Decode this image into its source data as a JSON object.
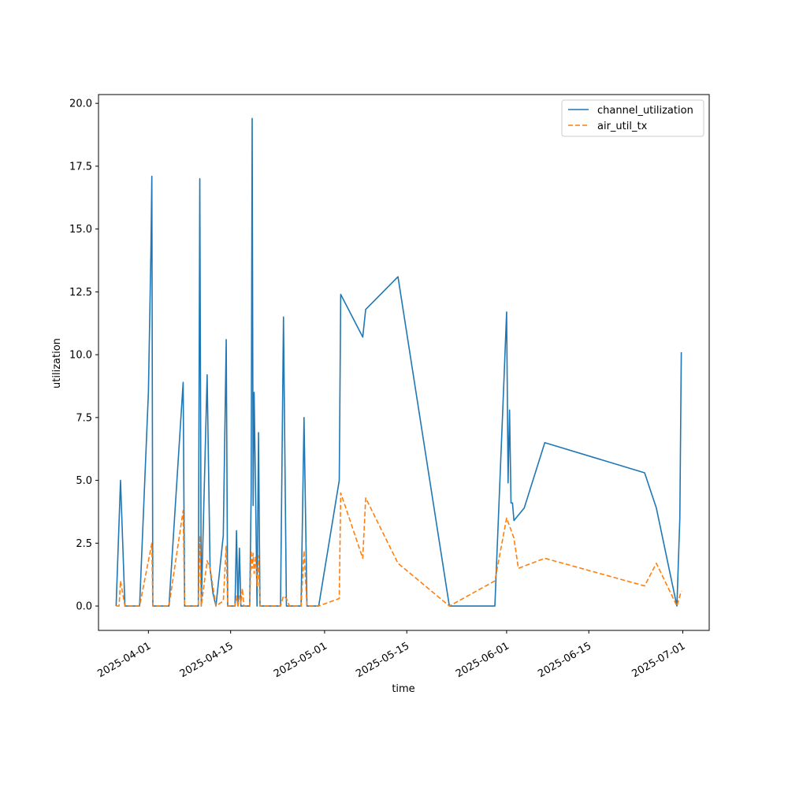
{
  "chart_data": {
    "type": "line",
    "title": "",
    "xlabel": "time",
    "ylabel": "utilization",
    "xlim": [
      "2025-03-23T12:00",
      "2025-07-05T12:00"
    ],
    "ylim": [
      -0.97,
      20.35
    ],
    "x_ticks": [
      "2025-04-01",
      "2025-04-15",
      "2025-05-01",
      "2025-05-15",
      "2025-06-01",
      "2025-06-15",
      "2025-07-01"
    ],
    "y_ticks": [
      "0.0",
      "2.5",
      "5.0",
      "7.5",
      "10.0",
      "12.5",
      "15.0",
      "17.5",
      "20.0"
    ],
    "grid": false,
    "legend": "top-right",
    "series": [
      {
        "name": "channel_utilization",
        "color": "#1f77b4",
        "dash": "solid",
        "points": [
          [
            "2025-03-26T12:00",
            0.0
          ],
          [
            "2025-03-27T06:00",
            5.0
          ],
          [
            "2025-03-28T00:00",
            0.0
          ],
          [
            "2025-03-30T12:00",
            0.0
          ],
          [
            "2025-04-01T00:00",
            8.5
          ],
          [
            "2025-04-01T10:00",
            14.0
          ],
          [
            "2025-04-01T14:00",
            17.1
          ],
          [
            "2025-04-01T18:00",
            0.0
          ],
          [
            "2025-04-04T12:00",
            0.0
          ],
          [
            "2025-04-06T22:00",
            8.9
          ],
          [
            "2025-04-07T04:00",
            0.0
          ],
          [
            "2025-04-09T12:00",
            0.0
          ],
          [
            "2025-04-09T18:00",
            17.0
          ],
          [
            "2025-04-10T00:00",
            0.0
          ],
          [
            "2025-04-11T00:00",
            9.2
          ],
          [
            "2025-04-11T12:00",
            1.5
          ],
          [
            "2025-04-12T00:00",
            0.5
          ],
          [
            "2025-04-12T12:00",
            0.0
          ],
          [
            "2025-04-13T18:00",
            2.8
          ],
          [
            "2025-04-14T06:00",
            10.6
          ],
          [
            "2025-04-14T12:00",
            0.0
          ],
          [
            "2025-04-15T18:00",
            0.0
          ],
          [
            "2025-04-16T00:00",
            3.0
          ],
          [
            "2025-04-16T06:00",
            0.0
          ],
          [
            "2025-04-16T12:00",
            2.3
          ],
          [
            "2025-04-16T18:00",
            0.0
          ],
          [
            "2025-04-18T06:00",
            0.0
          ],
          [
            "2025-04-18T12:00",
            4.5
          ],
          [
            "2025-04-18T16:00",
            19.4
          ],
          [
            "2025-04-18T20:00",
            4.0
          ],
          [
            "2025-04-19T00:00",
            8.5
          ],
          [
            "2025-04-19T06:00",
            4.5
          ],
          [
            "2025-04-19T12:00",
            0.0
          ],
          [
            "2025-04-19T18:00",
            6.9
          ],
          [
            "2025-04-20T00:00",
            0.0
          ],
          [
            "2025-04-23T12:00",
            0.0
          ],
          [
            "2025-04-24T00:00",
            11.5
          ],
          [
            "2025-04-24T12:00",
            0.0
          ],
          [
            "2025-04-27T00:00",
            0.0
          ],
          [
            "2025-04-27T12:00",
            7.5
          ],
          [
            "2025-04-28T00:00",
            0.0
          ],
          [
            "2025-04-30T00:00",
            0.0
          ],
          [
            "2025-05-03T12:00",
            5.0
          ],
          [
            "2025-05-03T18:00",
            12.4
          ],
          [
            "2025-05-07T12:00",
            10.7
          ],
          [
            "2025-05-08T00:00",
            11.8
          ],
          [
            "2025-05-13T12:00",
            13.1
          ],
          [
            "2025-05-22T06:00",
            0.0
          ],
          [
            "2025-05-30T00:00",
            0.0
          ],
          [
            "2025-05-31T12:00",
            8.7
          ],
          [
            "2025-06-01T00:00",
            11.7
          ],
          [
            "2025-06-01T06:00",
            4.9
          ],
          [
            "2025-06-01T12:00",
            7.8
          ],
          [
            "2025-06-01T18:00",
            4.1
          ],
          [
            "2025-06-02T00:00",
            4.1
          ],
          [
            "2025-06-02T06:00",
            3.4
          ],
          [
            "2025-06-04T00:00",
            3.9
          ],
          [
            "2025-06-07T12:00",
            6.5
          ],
          [
            "2025-06-24T12:00",
            5.3
          ],
          [
            "2025-06-26T12:00",
            3.9
          ],
          [
            "2025-06-30T00:00",
            0.0
          ],
          [
            "2025-06-30T12:00",
            3.5
          ],
          [
            "2025-06-30T18:00",
            10.1
          ]
        ]
      },
      {
        "name": "air_util_tx",
        "color": "#ff7f0e",
        "dash": "dashed",
        "points": [
          [
            "2025-03-26T12:00",
            0.0
          ],
          [
            "2025-03-27T00:00",
            0.0
          ],
          [
            "2025-03-27T06:00",
            1.0
          ],
          [
            "2025-03-28T00:00",
            0.0
          ],
          [
            "2025-03-30T12:00",
            0.0
          ],
          [
            "2025-04-01T14:00",
            2.5
          ],
          [
            "2025-04-01T18:00",
            0.0
          ],
          [
            "2025-04-04T12:00",
            0.0
          ],
          [
            "2025-04-06T22:00",
            3.8
          ],
          [
            "2025-04-07T04:00",
            0.0
          ],
          [
            "2025-04-09T12:00",
            0.0
          ],
          [
            "2025-04-09T18:00",
            2.8
          ],
          [
            "2025-04-10T00:00",
            0.0
          ],
          [
            "2025-04-11T00:00",
            1.8
          ],
          [
            "2025-04-11T12:00",
            1.5
          ],
          [
            "2025-04-12T12:00",
            0.0
          ],
          [
            "2025-04-13T18:00",
            0.2
          ],
          [
            "2025-04-14T06:00",
            2.4
          ],
          [
            "2025-04-14T12:00",
            0.0
          ],
          [
            "2025-04-15T18:00",
            0.0
          ],
          [
            "2025-04-16T00:00",
            0.4
          ],
          [
            "2025-04-16T06:00",
            0.0
          ],
          [
            "2025-04-16T12:00",
            0.4
          ],
          [
            "2025-04-16T18:00",
            0.1
          ],
          [
            "2025-04-17T00:00",
            0.7
          ],
          [
            "2025-04-17T06:00",
            0.0
          ],
          [
            "2025-04-18T06:00",
            0.0
          ],
          [
            "2025-04-18T12:00",
            2.2
          ],
          [
            "2025-04-18T16:00",
            1.5
          ],
          [
            "2025-04-18T20:00",
            2.1
          ],
          [
            "2025-04-19T00:00",
            1.3
          ],
          [
            "2025-04-19T06:00",
            2.0
          ],
          [
            "2025-04-19T12:00",
            0.8
          ],
          [
            "2025-04-19T18:00",
            2.0
          ],
          [
            "2025-04-20T00:00",
            0.0
          ],
          [
            "2025-04-23T12:00",
            0.0
          ],
          [
            "2025-04-24T00:00",
            0.4
          ],
          [
            "2025-04-24T12:00",
            0.3
          ],
          [
            "2025-04-25T00:00",
            0.0
          ],
          [
            "2025-04-27T00:00",
            0.0
          ],
          [
            "2025-04-27T12:00",
            2.2
          ],
          [
            "2025-04-28T00:00",
            0.0
          ],
          [
            "2025-04-30T00:00",
            0.0
          ],
          [
            "2025-05-03T12:00",
            0.3
          ],
          [
            "2025-05-03T18:00",
            4.5
          ],
          [
            "2025-05-07T12:00",
            1.9
          ],
          [
            "2025-05-08T00:00",
            4.3
          ],
          [
            "2025-05-13T12:00",
            1.7
          ],
          [
            "2025-05-22T06:00",
            0.0
          ],
          [
            "2025-05-30T00:00",
            1.0
          ],
          [
            "2025-06-01T00:00",
            3.5
          ],
          [
            "2025-06-02T06:00",
            2.7
          ],
          [
            "2025-06-03T00:00",
            1.5
          ],
          [
            "2025-06-07T12:00",
            1.9
          ],
          [
            "2025-06-24T12:00",
            0.8
          ],
          [
            "2025-06-26T12:00",
            1.7
          ],
          [
            "2025-06-30T00:00",
            0.0
          ],
          [
            "2025-06-30T18:00",
            0.6
          ]
        ]
      }
    ]
  }
}
